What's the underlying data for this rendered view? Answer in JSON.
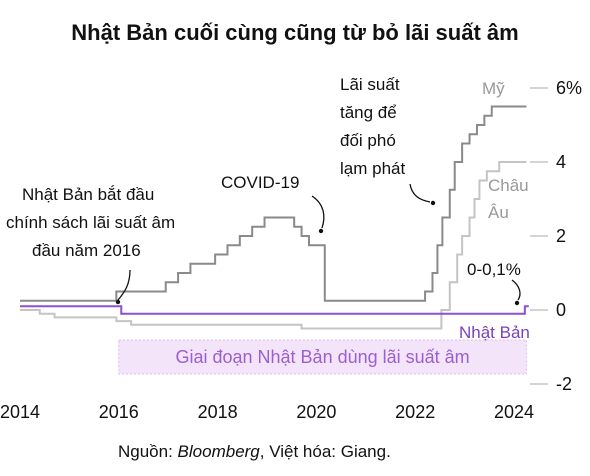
{
  "title": "Nhật Bản cuối cùng cũng từ bỏ lãi suất âm",
  "source": {
    "prefix": "Nguồn: ",
    "name": "Bloomberg",
    "suffix": ", Việt hóa: Giang."
  },
  "annotations": {
    "japan_start": [
      "Nhật Bản bắt đầu",
      "chính sách lãi suất âm",
      "đầu năm 2016"
    ],
    "covid": "COVID-19",
    "us_hike": [
      "Lãi suất",
      "tăng để",
      "đối phó",
      "lạm phát"
    ],
    "japan_now": "0-0,1%",
    "negative_band": "Giai đoạn Nhật Bản dùng lãi suất âm"
  },
  "colors": {
    "us": "#8a8a8a",
    "eu": "#c4c4c4",
    "japan": "#8e4fd0",
    "band": "#f3e4fa",
    "band_edge": "#d9b8ee",
    "axis_tick": "#aaaaaa",
    "arrow": "#111111"
  },
  "chart_data": {
    "type": "line",
    "title": "Nhật Bản cuối cùng cũng từ bỏ lãi suất âm",
    "xlabel": "",
    "ylabel": "",
    "xlim": [
      2014.0,
      2024.75
    ],
    "ylim": [
      -2,
      6
    ],
    "x_ticks": [
      2014,
      2016,
      2018,
      2020,
      2022,
      2024
    ],
    "x_tick_labels": [
      "2014",
      "2016",
      "2018",
      "2020",
      "2022",
      "2024"
    ],
    "y_ticks": [
      6,
      4,
      2,
      0,
      -2
    ],
    "y_tick_labels": [
      "6%",
      "4",
      "2",
      "0",
      "-2"
    ],
    "shaded_period": {
      "label": "Giai đoạn Nhật Bản dùng lãi suất âm",
      "x_start": 2016.0,
      "x_end": 2024.25
    },
    "series": [
      {
        "name": "Mỹ",
        "key": "us",
        "step": true,
        "points": [
          [
            2014.0,
            0.25
          ],
          [
            2015.95,
            0.5
          ],
          [
            2016.95,
            0.75
          ],
          [
            2017.2,
            1.0
          ],
          [
            2017.45,
            1.25
          ],
          [
            2017.95,
            1.5
          ],
          [
            2018.2,
            1.75
          ],
          [
            2018.45,
            2.0
          ],
          [
            2018.7,
            2.25
          ],
          [
            2018.95,
            2.5
          ],
          [
            2019.55,
            2.25
          ],
          [
            2019.7,
            2.0
          ],
          [
            2019.85,
            1.75
          ],
          [
            2020.17,
            0.25
          ],
          [
            2022.2,
            0.5
          ],
          [
            2022.35,
            1.0
          ],
          [
            2022.45,
            1.75
          ],
          [
            2022.55,
            2.5
          ],
          [
            2022.7,
            3.25
          ],
          [
            2022.8,
            4.0
          ],
          [
            2022.95,
            4.5
          ],
          [
            2023.1,
            4.75
          ],
          [
            2023.25,
            5.0
          ],
          [
            2023.4,
            5.25
          ],
          [
            2023.55,
            5.5
          ],
          [
            2024.25,
            5.5
          ]
        ]
      },
      {
        "name": "Châu Âu",
        "key": "eu",
        "step": true,
        "points": [
          [
            2014.0,
            0.0
          ],
          [
            2014.4,
            -0.1
          ],
          [
            2014.7,
            -0.2
          ],
          [
            2015.95,
            -0.3
          ],
          [
            2016.25,
            -0.4
          ],
          [
            2019.7,
            -0.5
          ],
          [
            2022.53,
            0.0
          ],
          [
            2022.7,
            0.75
          ],
          [
            2022.85,
            1.5
          ],
          [
            2022.95,
            2.0
          ],
          [
            2023.1,
            2.5
          ],
          [
            2023.2,
            3.0
          ],
          [
            2023.3,
            3.5
          ],
          [
            2023.45,
            3.75
          ],
          [
            2023.7,
            4.0
          ],
          [
            2024.25,
            4.0
          ]
        ]
      },
      {
        "name": "Nhật Bản",
        "key": "japan",
        "step": true,
        "points": [
          [
            2014.0,
            0.1
          ],
          [
            2016.05,
            -0.1
          ],
          [
            2024.22,
            0.1
          ],
          [
            2024.3,
            0.1
          ]
        ]
      }
    ]
  }
}
